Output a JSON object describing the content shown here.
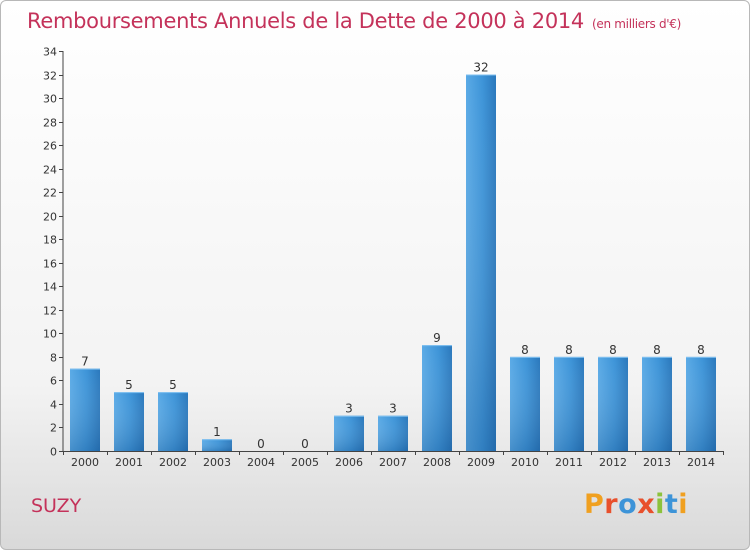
{
  "chart_data": {
    "type": "bar",
    "title": "Remboursements Annuels de la Dette de 2000 à 2014",
    "unit_note": "(en milliers d'€)",
    "categories": [
      "2000",
      "2001",
      "2002",
      "2003",
      "2004",
      "2005",
      "2006",
      "2007",
      "2008",
      "2009",
      "2010",
      "2011",
      "2012",
      "2013",
      "2014"
    ],
    "values": [
      7,
      5,
      5,
      1,
      0,
      0,
      3,
      3,
      9,
      32,
      8,
      8,
      8,
      8,
      8
    ],
    "ylim": [
      0,
      34
    ],
    "yticks": [
      0,
      2,
      4,
      6,
      8,
      10,
      12,
      14,
      16,
      18,
      20,
      22,
      24,
      26,
      28,
      30,
      32,
      34
    ],
    "xlabel": "",
    "ylabel": "",
    "grid": false,
    "bar_color": "#3d94d8"
  },
  "footer": {
    "commune": "SUZY",
    "logo_letters": [
      {
        "ch": "P",
        "color": "#f0a020"
      },
      {
        "ch": "r",
        "color": "#e8502c"
      },
      {
        "ch": "o",
        "color": "#3d94d8"
      },
      {
        "ch": "x",
        "color": "#e8502c"
      },
      {
        "ch": "i",
        "color": "#8cc23c"
      },
      {
        "ch": "t",
        "color": "#3d94d8"
      },
      {
        "ch": "i",
        "color": "#f0a020"
      }
    ]
  }
}
